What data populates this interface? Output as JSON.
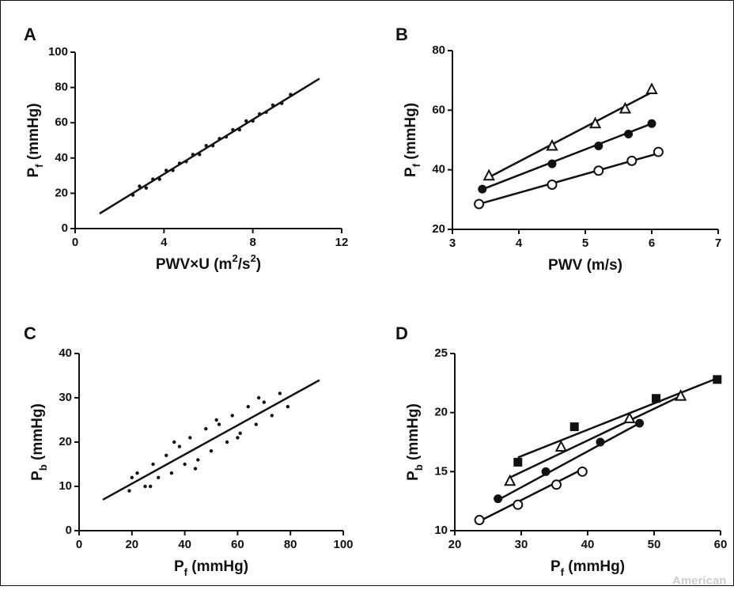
{
  "chart_data": [
    {
      "type": "scatter",
      "panel": "A",
      "xlabel": [
        "PWV×U (m",
        "2",
        "/s",
        "2",
        ")"
      ],
      "xlabel_script": "super",
      "ylabel": [
        "P",
        "f",
        " (mmHg)"
      ],
      "ylabel_script": "sub",
      "xlim": [
        0,
        12
      ],
      "xticks": [
        0,
        4,
        8,
        12
      ],
      "ylim": [
        0,
        100
      ],
      "yticks": [
        0,
        20,
        40,
        60,
        80,
        100
      ],
      "series": [
        {
          "marker": "dot",
          "color": "#111111",
          "x": [
            2.6,
            2.9,
            3.2,
            3.5,
            3.8,
            4.1,
            4.4,
            4.7,
            5.0,
            5.3,
            5.6,
            5.9,
            6.2,
            6.5,
            6.8,
            7.1,
            7.4,
            7.7,
            8.0,
            8.3,
            8.6,
            8.9,
            9.3,
            9.7
          ],
          "values": [
            19,
            24,
            23,
            28,
            28,
            33,
            33,
            37,
            38,
            42,
            42,
            47,
            47,
            51,
            52,
            56,
            56,
            61,
            61,
            65,
            66,
            70,
            71,
            76
          ]
        },
        {
          "marker": "line",
          "color": "#111111",
          "x": [
            1.1,
            11
          ],
          "values": [
            8.5,
            85
          ]
        }
      ]
    },
    {
      "type": "scatter",
      "panel": "B",
      "xlabel": [
        "PWV (m/s)"
      ],
      "xlabel_script": "super",
      "ylabel": [
        "P",
        "f",
        " (mmHg)"
      ],
      "ylabel_script": "sub",
      "xlim": [
        3,
        7
      ],
      "xticks": [
        3,
        4,
        5,
        6,
        7
      ],
      "ylim": [
        20,
        80
      ],
      "yticks": [
        20,
        40,
        60,
        80
      ],
      "series": [
        {
          "marker": "line",
          "color": "#111111",
          "x": [
            3.55,
            6.0
          ],
          "values": [
            37.5,
            66
          ]
        },
        {
          "marker": "line",
          "color": "#111111",
          "x": [
            3.4,
            6.0
          ],
          "values": [
            33,
            55.5
          ]
        },
        {
          "marker": "line",
          "color": "#111111",
          "x": [
            3.4,
            6.1
          ],
          "values": [
            28.5,
            45.5
          ]
        },
        {
          "marker": "triangle-open",
          "color": "#111111",
          "x": [
            3.55,
            4.5,
            5.15,
            5.6,
            6.0
          ],
          "values": [
            38,
            48,
            55.5,
            60.5,
            67
          ]
        },
        {
          "marker": "circle-filled",
          "color": "#111111",
          "x": [
            3.45,
            4.5,
            5.2,
            5.65,
            6.0
          ],
          "values": [
            33.5,
            42,
            48,
            52,
            55.5
          ]
        },
        {
          "marker": "circle-open",
          "color": "#111111",
          "x": [
            3.4,
            4.5,
            5.2,
            5.7,
            6.1
          ],
          "values": [
            28.5,
            35,
            39.7,
            43,
            46
          ]
        }
      ]
    },
    {
      "type": "scatter",
      "panel": "C",
      "xlabel": [
        "P",
        "f",
        " (mmHg)"
      ],
      "xlabel_script": "sub",
      "ylabel": [
        "P",
        "b",
        " (mmHg)"
      ],
      "ylabel_script": "sub",
      "xlim": [
        0,
        100
      ],
      "xticks": [
        0,
        20,
        40,
        60,
        80,
        100
      ],
      "ylim": [
        0,
        40
      ],
      "yticks": [
        0,
        10,
        20,
        30,
        40
      ],
      "series": [
        {
          "marker": "dot",
          "color": "#111111",
          "x": [
            19,
            22,
            25,
            28,
            30,
            33,
            35,
            38,
            40,
            42,
            45,
            48,
            50,
            53,
            56,
            58,
            61,
            64,
            67,
            70,
            73,
            76,
            79,
            20,
            27,
            36,
            44,
            52,
            60,
            68
          ],
          "values": [
            9,
            13,
            10,
            15,
            12,
            17,
            13,
            19,
            15,
            21,
            16,
            23,
            18,
            24,
            20,
            26,
            22,
            28,
            24,
            29,
            26,
            31,
            28,
            12,
            10,
            20,
            14,
            25,
            21,
            30
          ]
        },
        {
          "marker": "line",
          "color": "#111111",
          "x": [
            9,
            91
          ],
          "values": [
            7,
            34
          ]
        }
      ]
    },
    {
      "type": "scatter",
      "panel": "D",
      "xlabel": [
        "P",
        "f",
        " (mmHg)"
      ],
      "xlabel_script": "sub",
      "ylabel": [
        "P",
        "b",
        " (mmHg)"
      ],
      "ylabel_script": "sub",
      "xlim": [
        20,
        60
      ],
      "xticks": [
        20,
        30,
        40,
        50,
        60
      ],
      "ylim": [
        10,
        25
      ],
      "yticks": [
        10,
        15,
        20,
        25
      ],
      "series": [
        {
          "marker": "line",
          "color": "#111111",
          "x": [
            29.5,
            59.5
          ],
          "values": [
            16.2,
            22.9
          ]
        },
        {
          "marker": "line",
          "color": "#111111",
          "x": [
            28.3,
            54
          ],
          "values": [
            14.5,
            21.4
          ]
        },
        {
          "marker": "line",
          "color": "#111111",
          "x": [
            26.5,
            47.8
          ],
          "values": [
            12.6,
            19.1
          ]
        },
        {
          "marker": "line",
          "color": "#111111",
          "x": [
            23.7,
            39.2
          ],
          "values": [
            10.8,
            15.2
          ]
        },
        {
          "marker": "square-filled",
          "color": "#111111",
          "x": [
            29.5,
            38,
            50.3,
            59.5
          ],
          "values": [
            15.8,
            18.8,
            21.2,
            22.8
          ]
        },
        {
          "marker": "triangle-open",
          "color": "#111111",
          "x": [
            28.3,
            36,
            46.3,
            54
          ],
          "values": [
            14.2,
            17.1,
            19.5,
            21.4
          ]
        },
        {
          "marker": "circle-filled",
          "color": "#111111",
          "x": [
            26.5,
            33.7,
            41.9,
            47.8
          ],
          "values": [
            12.7,
            15,
            17.5,
            19.1
          ]
        },
        {
          "marker": "circle-open",
          "color": "#111111",
          "x": [
            23.7,
            29.5,
            35.3,
            39.2
          ],
          "values": [
            10.9,
            12.2,
            13.9,
            15
          ]
        }
      ]
    }
  ],
  "watermark": "American"
}
